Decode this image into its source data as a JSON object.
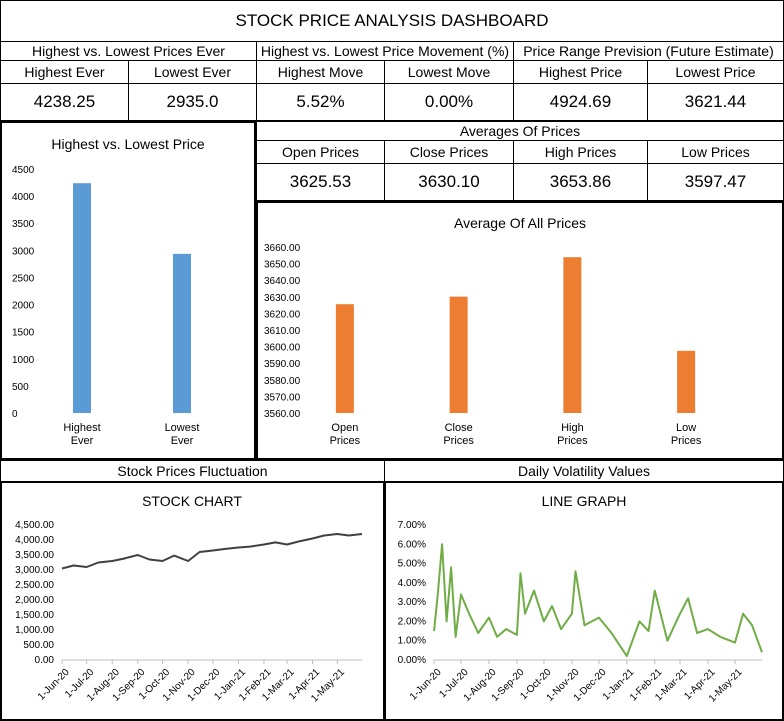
{
  "dashboard": {
    "title": "STOCK PRICE ANALYSIS DASHBOARD",
    "sections": {
      "ever": "Highest vs. Lowest Prices Ever",
      "movement": "Highest vs. Lowest Price Movement (%)",
      "prevision": "Price Range Prevision (Future Estimate)",
      "averages": "Averages Of Prices",
      "fluctuation": "Stock Prices Fluctuation",
      "volatility": "Daily Volatility Values"
    },
    "metrics": {
      "highest_ever": {
        "label": "Highest Ever",
        "value": "4238.25"
      },
      "lowest_ever": {
        "label": "Lowest Ever",
        "value": "2935.0"
      },
      "highest_move": {
        "label": "Highest Move",
        "value": "5.52%"
      },
      "lowest_move": {
        "label": "Lowest Move",
        "value": "0.00%"
      },
      "highest_price": {
        "label": "Highest Price",
        "value": "4924.69"
      },
      "lowest_price": {
        "label": "Lowest Price",
        "value": "3621.44"
      },
      "open_prices": {
        "label": "Open Prices",
        "value": "3625.53"
      },
      "close_prices": {
        "label": "Close Prices",
        "value": "3630.10"
      },
      "high_prices": {
        "label": "High Prices",
        "value": "3653.86"
      },
      "low_prices": {
        "label": "Low Prices",
        "value": "3597.47"
      }
    }
  },
  "chart_data": [
    {
      "type": "bar",
      "title": "Highest vs. Lowest Price",
      "categories": [
        "Highest Ever",
        "Lowest Ever"
      ],
      "values": [
        4238.25,
        2935.0
      ],
      "ylim": [
        0,
        4500
      ],
      "yticks": [
        "0",
        "500",
        "1000",
        "1500",
        "2000",
        "2500",
        "3000",
        "3500",
        "4000",
        "4500"
      ],
      "color": "#5b9bd5"
    },
    {
      "type": "bar",
      "title": "Average Of All Prices",
      "categories": [
        "Open Prices",
        "Close Prices",
        "High Prices",
        "Low Prices"
      ],
      "values": [
        3625.53,
        3630.1,
        3653.86,
        3597.47
      ],
      "ylim": [
        3560,
        3660
      ],
      "yticks": [
        "3560.00",
        "3570.00",
        "3580.00",
        "3590.00",
        "3600.00",
        "3610.00",
        "3620.00",
        "3630.00",
        "3640.00",
        "3650.00",
        "3660.00"
      ],
      "color": "#ed7d31"
    },
    {
      "type": "line",
      "title": "STOCK CHART",
      "ylim": [
        0,
        4500
      ],
      "yticks": [
        "0.00",
        "500.00",
        "1,000.00",
        "1,500.00",
        "2,000.00",
        "2,500.00",
        "3,000.00",
        "3,500.00",
        "4,000.00",
        "4,500.00"
      ],
      "xticks": [
        "1-Jun-20",
        "1-Jul-20",
        "1-Aug-20",
        "1-Sep-20",
        "1-Oct-20",
        "1-Nov-20",
        "1-Dec-20",
        "1-Jan-21",
        "1-Feb-21",
        "1-Mar-21",
        "1-Apr-21",
        "1-May-21"
      ],
      "x": [
        "1-Jun-20",
        "15-Jun-20",
        "1-Jul-20",
        "15-Jul-20",
        "1-Aug-20",
        "15-Aug-20",
        "1-Sep-20",
        "15-Sep-20",
        "1-Oct-20",
        "15-Oct-20",
        "1-Nov-20",
        "15-Nov-20",
        "1-Dec-20",
        "15-Dec-20",
        "1-Jan-21",
        "15-Jan-21",
        "1-Feb-21",
        "15-Feb-21",
        "1-Mar-21",
        "15-Mar-21",
        "1-Apr-21",
        "15-Apr-21",
        "1-May-21",
        "15-May-21",
        "31-May-21"
      ],
      "values": [
        3050,
        3150,
        3100,
        3250,
        3300,
        3380,
        3500,
        3350,
        3300,
        3480,
        3300,
        3600,
        3650,
        3700,
        3750,
        3780,
        3850,
        3920,
        3850,
        3950,
        4050,
        4150,
        4200,
        4150,
        4200
      ],
      "color": "#404040"
    },
    {
      "type": "line",
      "title": "LINE GRAPH",
      "ylim": [
        0,
        7
      ],
      "yticks": [
        "0.00%",
        "1.00%",
        "2.00%",
        "3.00%",
        "4.00%",
        "5.00%",
        "6.00%",
        "7.00%"
      ],
      "xticks": [
        "1-Jun-20",
        "1-Jul-20",
        "1-Aug-20",
        "1-Sep-20",
        "1-Oct-20",
        "1-Nov-20",
        "1-Dec-20",
        "1-Jan-21",
        "1-Feb-21",
        "1-Mar-21",
        "1-Apr-21",
        "1-May-21"
      ],
      "x": [
        "1-Jun-20",
        "5-Jun-20",
        "10-Jun-20",
        "15-Jun-20",
        "20-Jun-20",
        "25-Jun-20",
        "1-Jul-20",
        "10-Jul-20",
        "20-Jul-20",
        "1-Aug-20",
        "10-Aug-20",
        "20-Aug-20",
        "1-Sep-20",
        "5-Sep-20",
        "10-Sep-20",
        "20-Sep-20",
        "1-Oct-20",
        "10-Oct-20",
        "20-Oct-20",
        "1-Nov-20",
        "5-Nov-20",
        "15-Nov-20",
        "1-Dec-20",
        "15-Dec-20",
        "1-Jan-21",
        "15-Jan-21",
        "25-Jan-21",
        "1-Feb-21",
        "15-Feb-21",
        "1-Mar-21",
        "10-Mar-21",
        "20-Mar-21",
        "1-Apr-21",
        "15-Apr-21",
        "1-May-21",
        "10-May-21",
        "20-May-21",
        "31-May-21"
      ],
      "values": [
        1.5,
        3.3,
        6.0,
        2.0,
        4.8,
        1.2,
        3.4,
        2.4,
        1.4,
        2.2,
        1.2,
        1.6,
        1.3,
        4.5,
        2.4,
        3.6,
        2.0,
        2.8,
        1.6,
        2.4,
        4.6,
        1.8,
        2.2,
        1.4,
        0.2,
        2.0,
        1.5,
        3.6,
        1.0,
        2.4,
        3.2,
        1.4,
        1.6,
        1.2,
        0.9,
        2.4,
        1.8,
        0.4
      ],
      "color": "#70ad47"
    }
  ]
}
